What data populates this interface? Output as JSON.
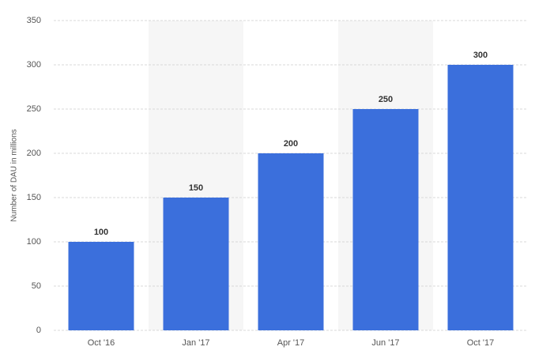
{
  "chart_data": {
    "type": "bar",
    "y_label": "Number of DAU in millions",
    "categories": [
      "Oct '16",
      "Jan '17",
      "Apr '17",
      "Jun '17",
      "Oct '17"
    ],
    "values": [
      100,
      150,
      200,
      250,
      300
    ],
    "color": "#3b6fdc",
    "ylim": [
      0,
      350
    ],
    "yticks": [
      0,
      50,
      100,
      150,
      200,
      250,
      300,
      350
    ],
    "grid": true
  }
}
